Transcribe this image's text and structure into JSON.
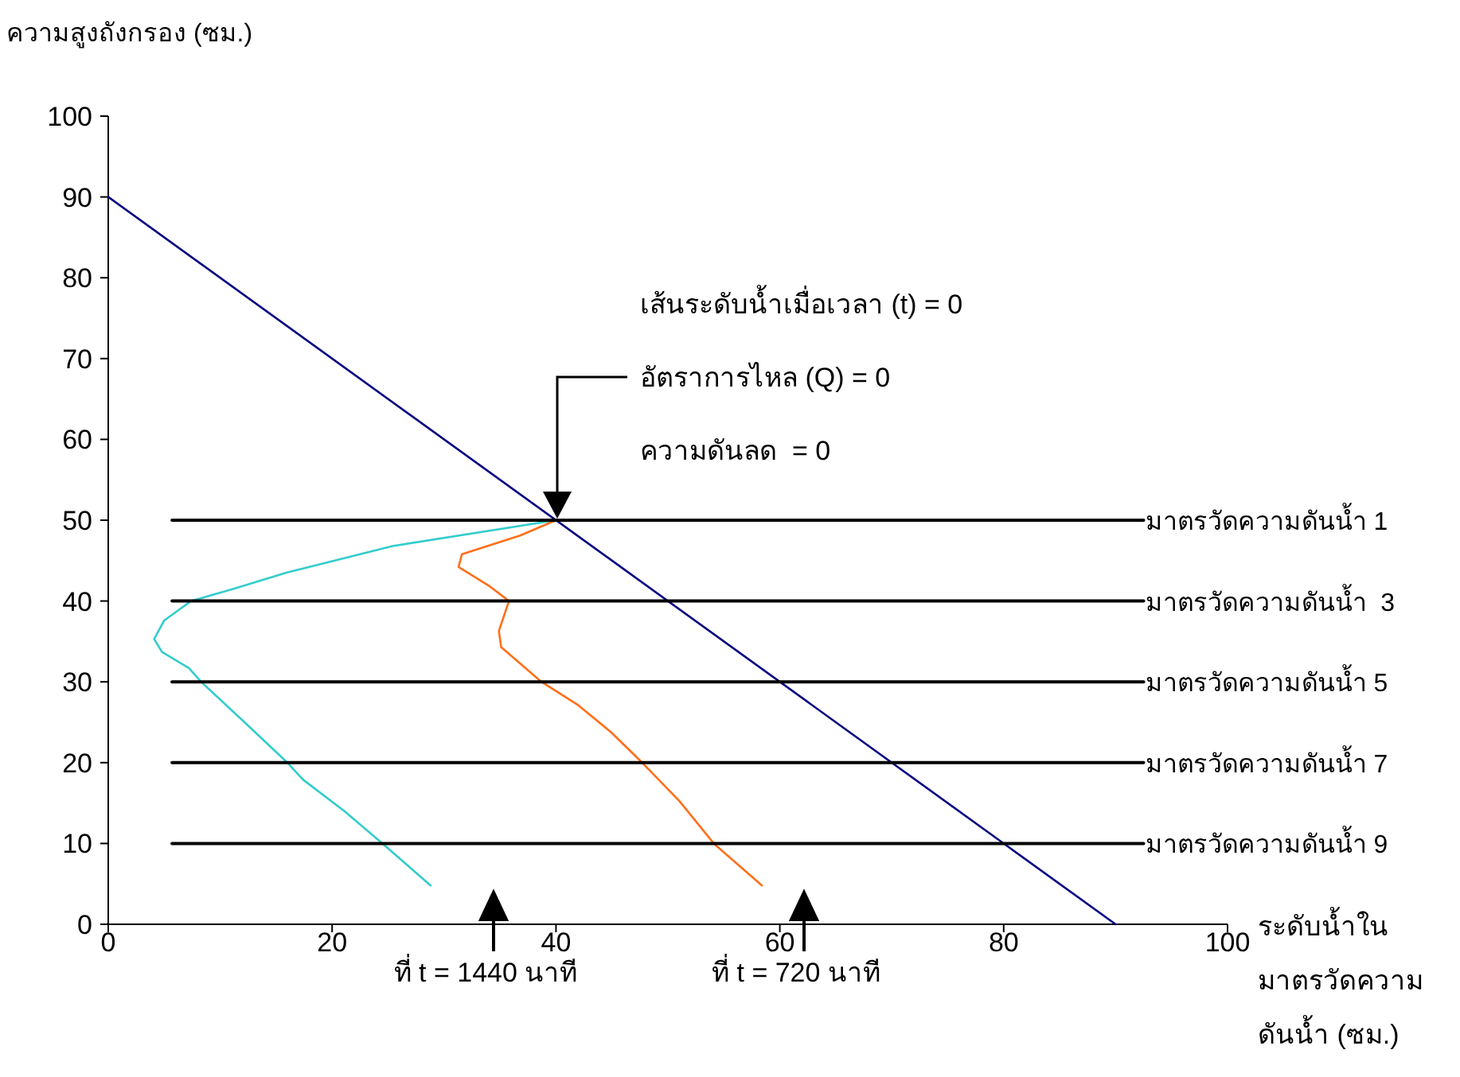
{
  "chart_data": {
    "type": "line",
    "ylabel": "ความสูงถังกรอง (ซม.)",
    "xlabel": "ระดับน้ำในมาตรวัดความดันน้ำ (ซม.)",
    "xlim": [
      0,
      100
    ],
    "xticks": [
      0,
      20,
      40,
      60,
      80,
      100
    ],
    "ylim": [
      0,
      100
    ],
    "yticks": [
      0,
      10,
      20,
      30,
      40,
      50,
      60,
      70,
      80,
      90,
      100
    ],
    "grid": false,
    "marker": "none",
    "line_style": "solid",
    "series": [
      {
        "color": "#000080",
        "x": [
          0,
          90
        ],
        "values": [
          90,
          0
        ]
      },
      {
        "color": "#33cccc",
        "x": [
          40,
          25.4,
          15.9,
          11.2,
          7.4,
          5.0,
          4.1,
          4.8,
          7.2,
          8.3,
          12.1,
          16.0,
          17.4,
          21.1,
          24.5,
          28.8
        ],
        "values": [
          50,
          46.8,
          43.5,
          41.5,
          40,
          37.6,
          35.3,
          33.7,
          31.7,
          30,
          25.1,
          20,
          17.9,
          14,
          10,
          4.8
        ]
      },
      {
        "color": "#ff6f1a",
        "x": [
          40,
          36.8,
          31.6,
          31.3,
          34.0,
          35.8,
          34.9,
          35.1,
          38.7,
          42.0,
          44.9,
          47.7,
          51.0,
          54.1,
          58.4
        ],
        "values": [
          50,
          48.1,
          45.8,
          44.2,
          41.9,
          40,
          36.3,
          34.3,
          30,
          27.1,
          23.8,
          20,
          15.3,
          10,
          4.8
        ]
      },
      {
        "name": "มาตรวัดความดันน้ำ 1",
        "color": "#000000",
        "x": [
          5.7,
          92.5
        ],
        "values": [
          50,
          50
        ]
      },
      {
        "name": "มาตรวัดความดันน้ำ  3",
        "color": "#000000",
        "x": [
          5.7,
          92.5
        ],
        "values": [
          40,
          40
        ]
      },
      {
        "name": "มาตรวัดความดันน้ำ 5",
        "color": "#000000",
        "x": [
          5.7,
          92.5
        ],
        "values": [
          30,
          30
        ]
      },
      {
        "name": "มาตรวัดความดันน้ำ 7",
        "color": "#000000",
        "x": [
          5.7,
          92.5
        ],
        "values": [
          20,
          20
        ]
      },
      {
        "name": "มาตรวัดความดันน้ำ 9",
        "color": "#000000",
        "x": [
          5.7,
          92.5
        ],
        "values": [
          10,
          10
        ]
      }
    ],
    "annotations": [
      "เส้นระดับน้ำเมื่อเวลา (t) = 0",
      "อัตราการไหล (Q) = 0",
      "ความดันลด  = 0",
      "ที่ t = 1440 นาที",
      "ที่ t = 720 นาที"
    ]
  }
}
